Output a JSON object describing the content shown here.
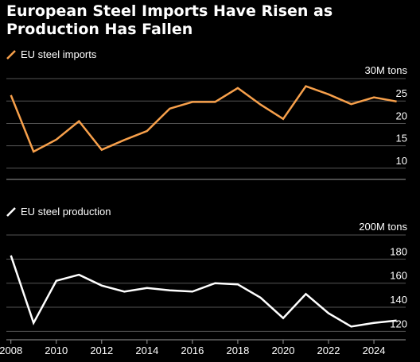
{
  "title": "European Steel Imports Have Risen as Production Has Fallen",
  "chart_data": [
    {
      "type": "line",
      "series": [
        {
          "name": "EU steel imports",
          "color": "#f7a04b",
          "x": [
            2008,
            2009,
            2010,
            2011,
            2012,
            2013,
            2014,
            2015,
            2016,
            2017,
            2018,
            2019,
            2020,
            2021,
            2022,
            2023,
            2024,
            2025
          ],
          "values": [
            26.3,
            13.7,
            16.4,
            20.5,
            14.1,
            16.3,
            18.3,
            23.3,
            24.8,
            24.8,
            27.9,
            24.2,
            21.0,
            28.3,
            26.5,
            24.3,
            25.8,
            24.9
          ]
        }
      ],
      "unit_label": "30M tons",
      "y_ticks": [
        10,
        15,
        20,
        25
      ],
      "ylim": [
        7.5,
        30
      ],
      "xlim": [
        2007.8,
        2025.4
      ]
    },
    {
      "type": "line",
      "series": [
        {
          "name": "EU steel production",
          "color": "#ffffff",
          "x": [
            2008,
            2009,
            2010,
            2011,
            2012,
            2013,
            2014,
            2015,
            2016,
            2017,
            2018,
            2019,
            2020,
            2021,
            2022,
            2023,
            2024,
            2025
          ],
          "values": [
            183,
            127,
            162,
            167,
            158,
            153,
            156,
            154,
            153,
            160,
            159,
            148,
            131,
            151,
            135,
            124,
            127,
            129
          ]
        }
      ],
      "unit_label": "200M tons",
      "y_ticks": [
        120,
        140,
        160,
        180
      ],
      "ylim": [
        113,
        200
      ],
      "x_ticks": [
        2008,
        2010,
        2012,
        2014,
        2016,
        2018,
        2020,
        2022,
        2024
      ],
      "xlim": [
        2007.8,
        2025.4
      ]
    }
  ]
}
